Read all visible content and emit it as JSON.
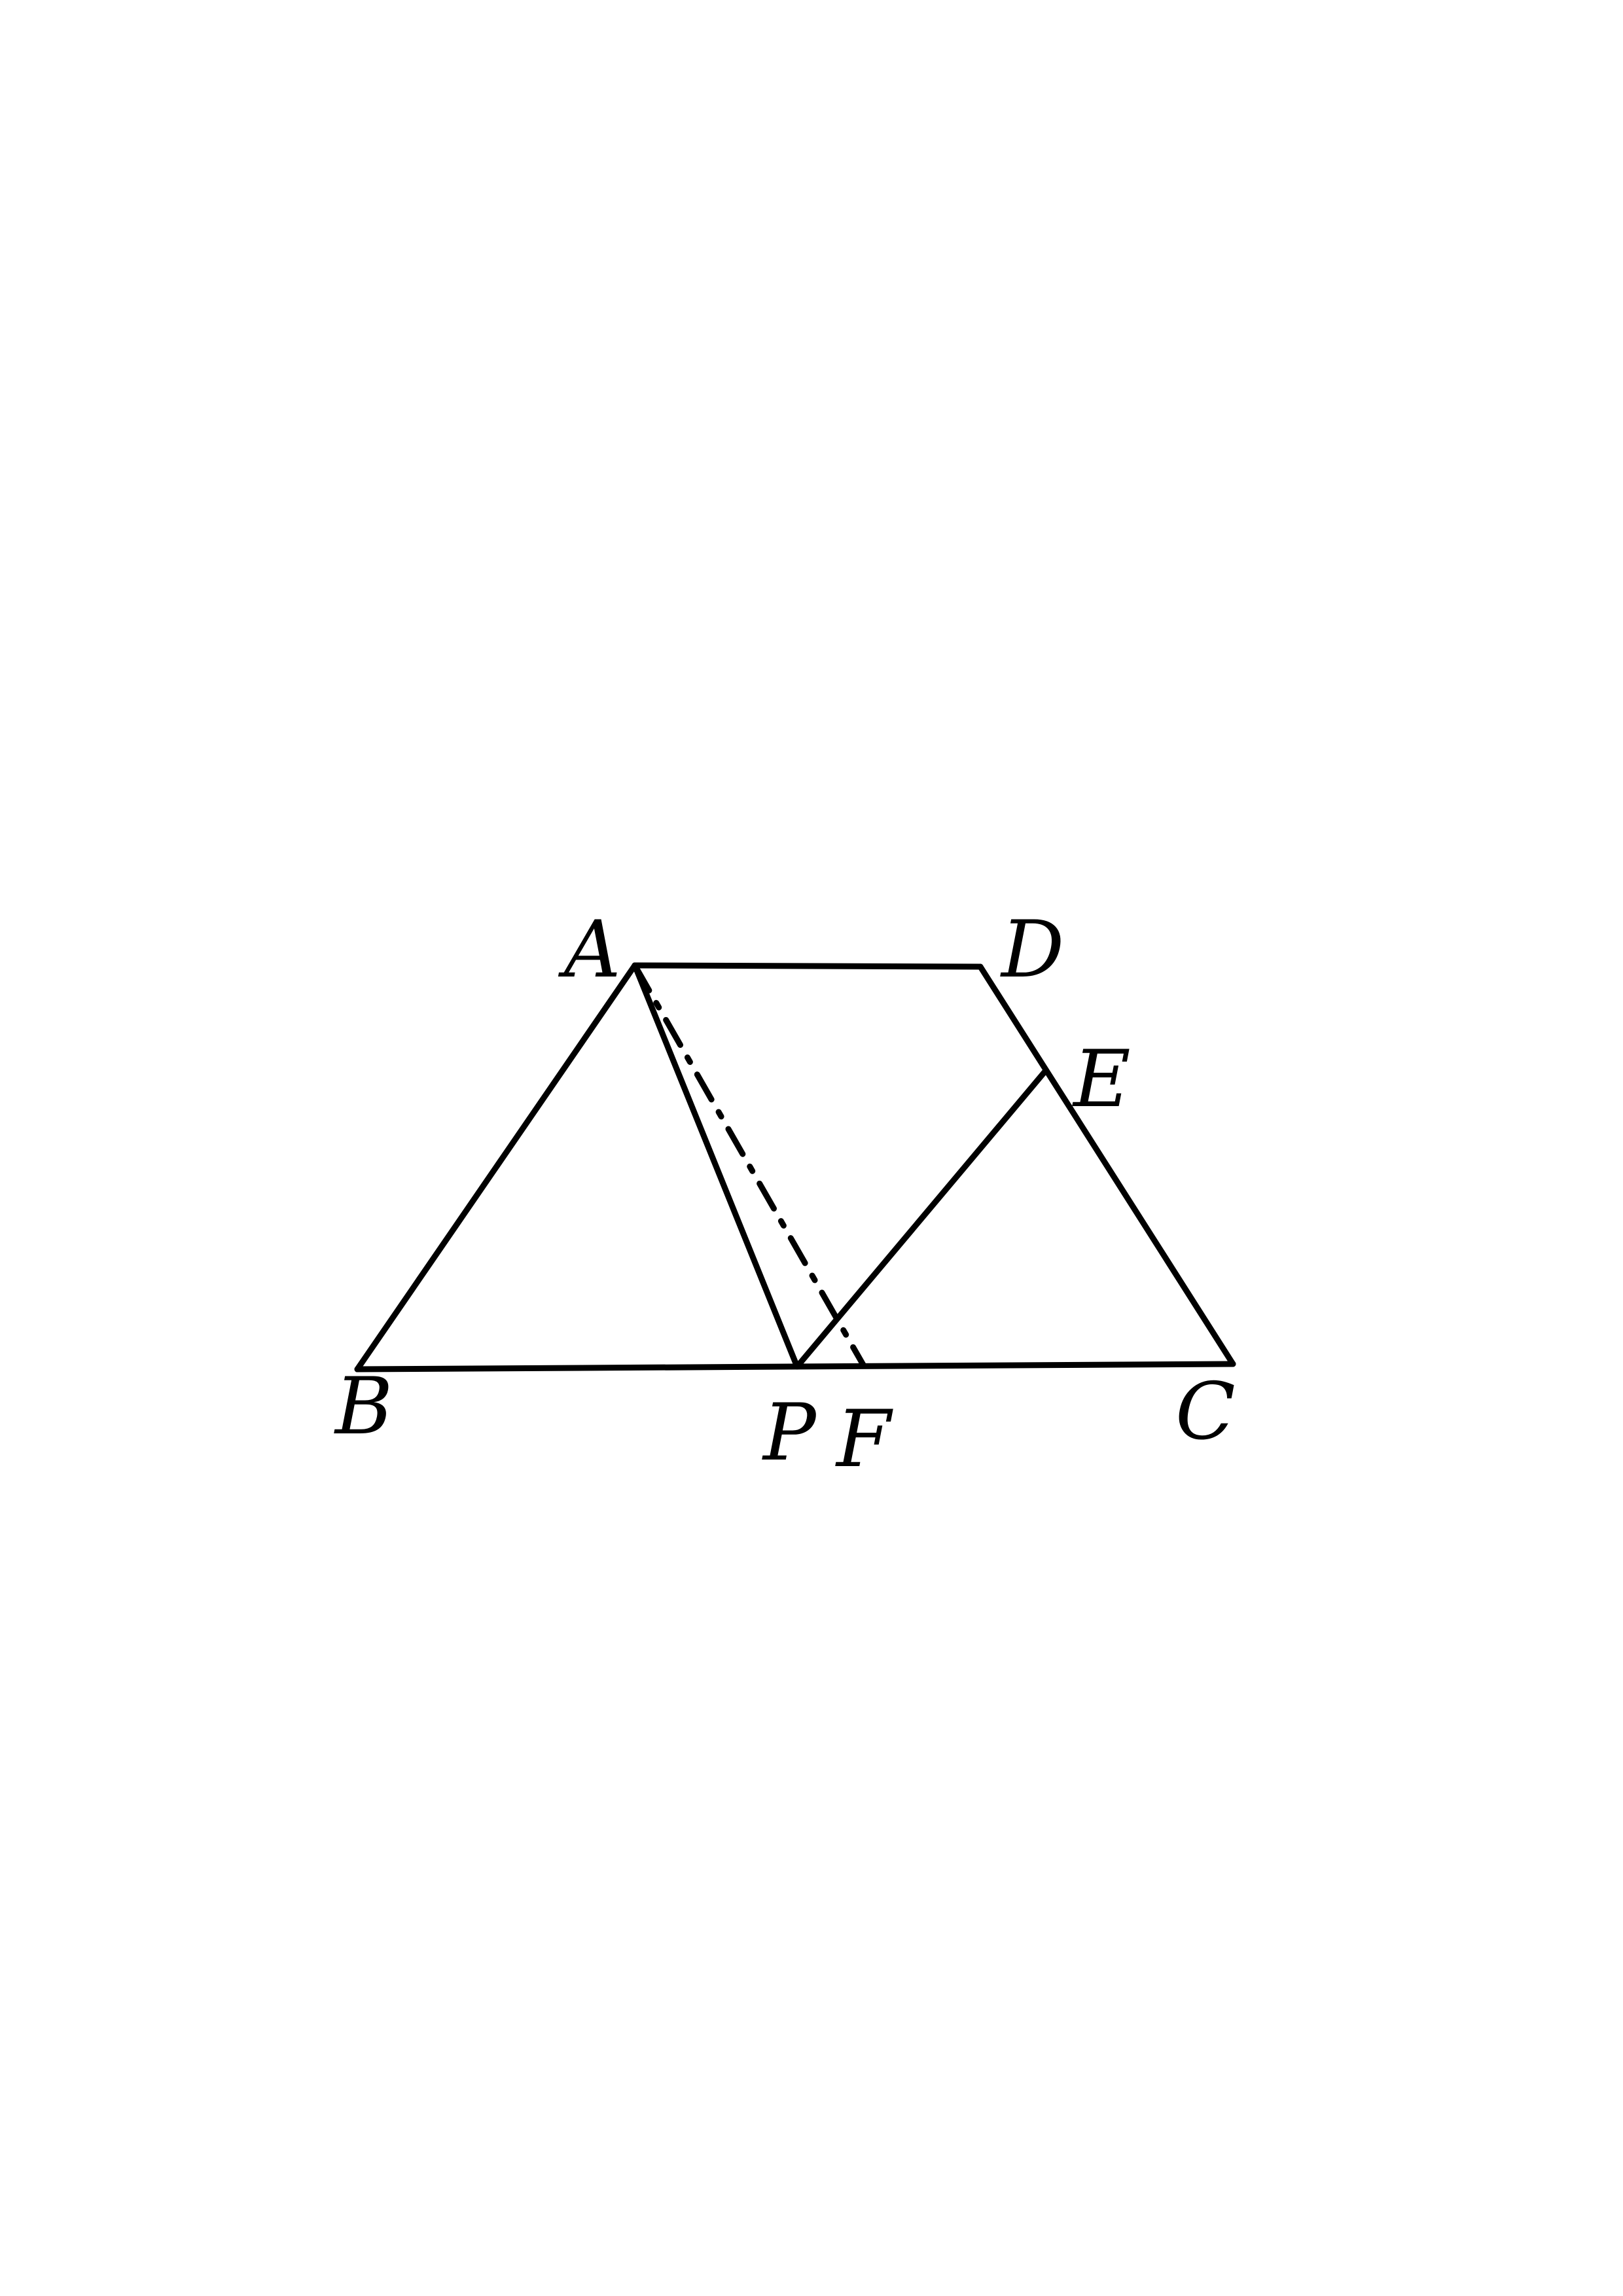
{
  "figure": {
    "type": "geometry",
    "points": [
      {
        "id": "A",
        "label": "A"
      },
      {
        "id": "B",
        "label": "B"
      },
      {
        "id": "C",
        "label": "C"
      },
      {
        "id": "D",
        "label": "D"
      },
      {
        "id": "E",
        "label": "E"
      },
      {
        "id": "P",
        "label": "P"
      },
      {
        "id": "F",
        "label": "F"
      }
    ],
    "segments": [
      {
        "from": "A",
        "to": "D",
        "style": "solid"
      },
      {
        "from": "D",
        "to": "C",
        "style": "solid"
      },
      {
        "from": "B",
        "to": "C",
        "style": "solid"
      },
      {
        "from": "A",
        "to": "B",
        "style": "solid"
      },
      {
        "from": "A",
        "to": "P",
        "style": "solid"
      },
      {
        "from": "P",
        "to": "E",
        "style": "solid"
      },
      {
        "from": "A",
        "to": "F",
        "style": "dashed"
      }
    ],
    "stroke_color": "#000000",
    "background_color": "#ffffff"
  }
}
